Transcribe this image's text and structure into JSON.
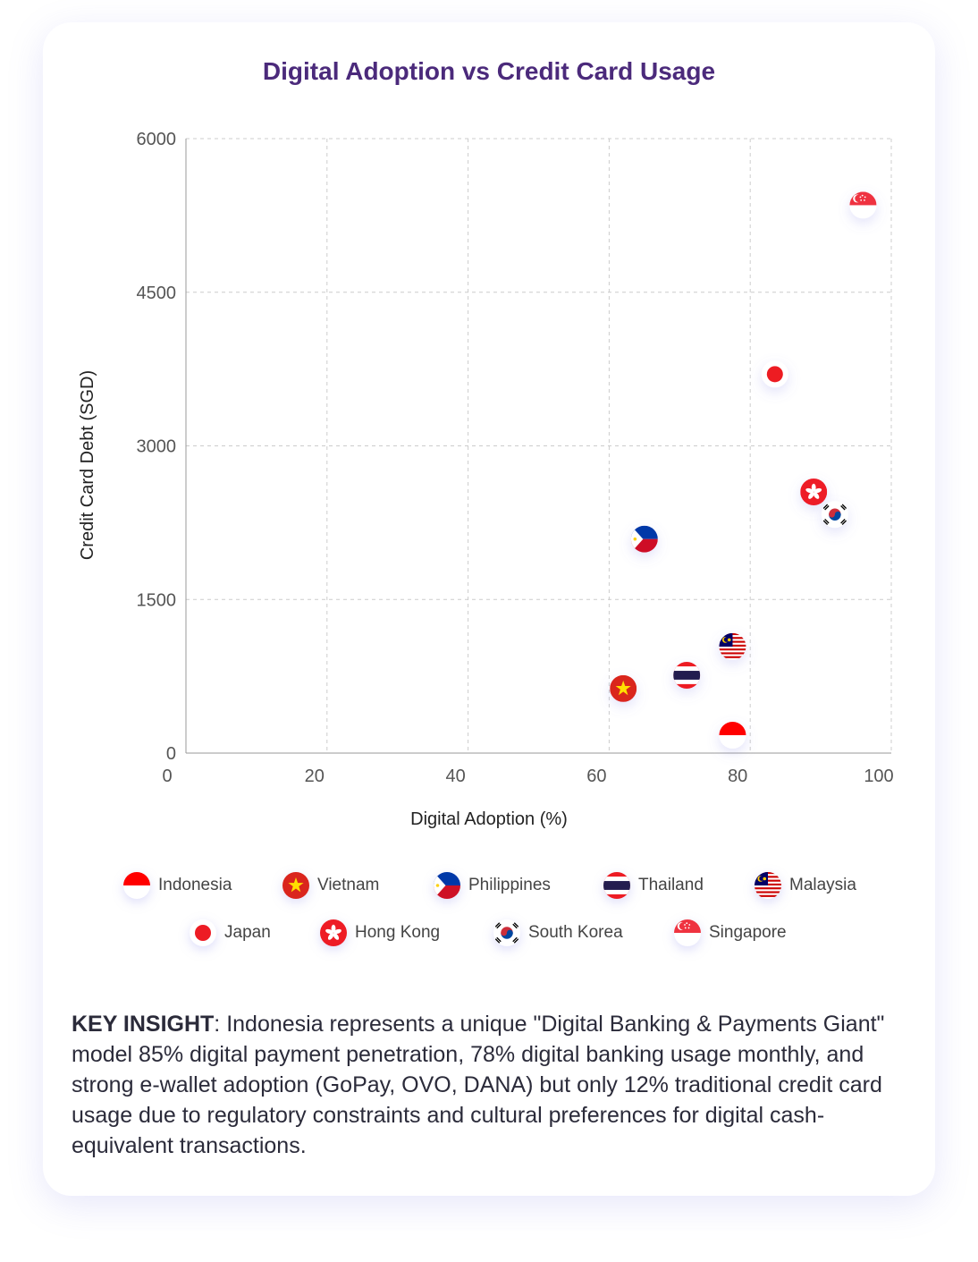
{
  "colors": {
    "title": "#4b2a7b",
    "grid": "#cccccc",
    "text": "#444444"
  },
  "chart_data": {
    "type": "scatter",
    "title": "Digital Adoption vs Credit Card Usage",
    "xlabel": "Digital Adoption (%)",
    "ylabel": "Credit Card Debt (SGD)",
    "xlim": [
      0,
      100
    ],
    "ylim": [
      0,
      6000
    ],
    "xticks": [
      "0",
      "20",
      "40",
      "60",
      "80",
      "100"
    ],
    "yticks": [
      "0",
      "1500",
      "3000",
      "4500",
      "6000"
    ],
    "grid": true,
    "legend_placement": "bottom",
    "marker": "country-flag",
    "points": [
      {
        "name": "Indonesia",
        "flag": "id",
        "x": 77.5,
        "y": 175
      },
      {
        "name": "Vietnam",
        "flag": "vn",
        "x": 62,
        "y": 630
      },
      {
        "name": "Philippines",
        "flag": "ph",
        "x": 65,
        "y": 2090
      },
      {
        "name": "Thailand",
        "flag": "th",
        "x": 71,
        "y": 760
      },
      {
        "name": "Malaysia",
        "flag": "my",
        "x": 77.5,
        "y": 1040
      },
      {
        "name": "Japan",
        "flag": "jp",
        "x": 83.5,
        "y": 3700
      },
      {
        "name": "Hong Kong",
        "flag": "hk",
        "x": 89,
        "y": 2550
      },
      {
        "name": "South Korea",
        "flag": "kr",
        "x": 92,
        "y": 2330
      },
      {
        "name": "Singapore",
        "flag": "sg",
        "x": 96,
        "y": 5350
      }
    ]
  },
  "insight": {
    "label": "KEY INSIGHT",
    "text": ": Indonesia represents a unique \"Digital Banking & Payments Giant\" model 85% digital payment penetration, 78% digital banking usage monthly, and strong e-wallet adoption (GoPay, OVO, DANA) but only 12% traditional credit card usage due to regulatory constraints and cultural preferences for digital cash-equivalent transactions."
  }
}
